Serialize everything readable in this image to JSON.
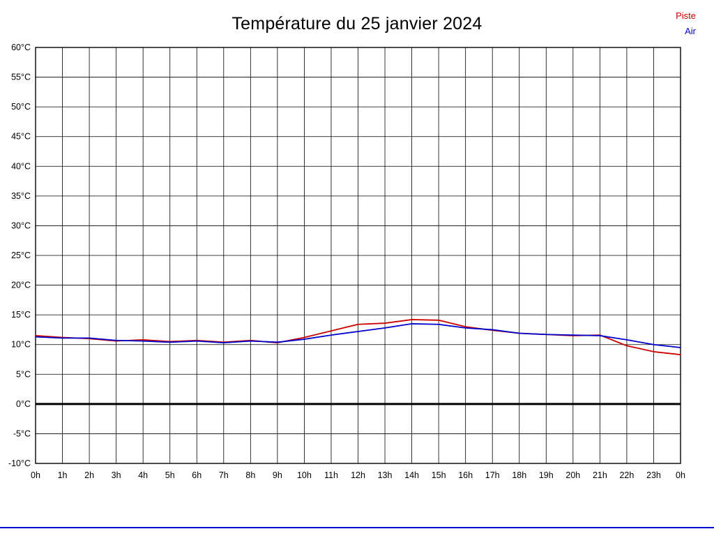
{
  "page": {
    "background": "#ffffff"
  },
  "chart_data": {
    "type": "line",
    "title": "Température du 25 janvier 2024",
    "xlabel": "",
    "ylabel": "",
    "xlim": [
      0,
      24
    ],
    "ylim": [
      -10,
      60
    ],
    "grid": true,
    "legend_position": "top-right",
    "zero_line": {
      "value": 0,
      "color": "#000000",
      "width": 3
    },
    "colors": {
      "grid": "#000000",
      "border": "#000000",
      "tick_text": "#000000",
      "bottom_bar": "#0000cc"
    },
    "x_ticks": [
      {
        "v": 0,
        "label": "0h"
      },
      {
        "v": 1,
        "label": "1h"
      },
      {
        "v": 2,
        "label": "2h"
      },
      {
        "v": 3,
        "label": "3h"
      },
      {
        "v": 4,
        "label": "4h"
      },
      {
        "v": 5,
        "label": "5h"
      },
      {
        "v": 6,
        "label": "6h"
      },
      {
        "v": 7,
        "label": "7h"
      },
      {
        "v": 8,
        "label": "8h"
      },
      {
        "v": 9,
        "label": "9h"
      },
      {
        "v": 10,
        "label": "10h"
      },
      {
        "v": 11,
        "label": "11h"
      },
      {
        "v": 12,
        "label": "12h"
      },
      {
        "v": 13,
        "label": "13h"
      },
      {
        "v": 14,
        "label": "14h"
      },
      {
        "v": 15,
        "label": "15h"
      },
      {
        "v": 16,
        "label": "16h"
      },
      {
        "v": 17,
        "label": "17h"
      },
      {
        "v": 18,
        "label": "18h"
      },
      {
        "v": 19,
        "label": "19h"
      },
      {
        "v": 20,
        "label": "20h"
      },
      {
        "v": 21,
        "label": "21h"
      },
      {
        "v": 22,
        "label": "22h"
      },
      {
        "v": 23,
        "label": "23h"
      },
      {
        "v": 24,
        "label": "0h"
      }
    ],
    "y_ticks": [
      {
        "v": 60,
        "label": "60°C"
      },
      {
        "v": 55,
        "label": "55°C"
      },
      {
        "v": 50,
        "label": "50°C"
      },
      {
        "v": 45,
        "label": "45°C"
      },
      {
        "v": 40,
        "label": "40°C"
      },
      {
        "v": 35,
        "label": "35°C"
      },
      {
        "v": 30,
        "label": "30°C"
      },
      {
        "v": 25,
        "label": "25°C"
      },
      {
        "v": 20,
        "label": "20°C"
      },
      {
        "v": 15,
        "label": "15°C"
      },
      {
        "v": 10,
        "label": "10°C"
      },
      {
        "v": 5,
        "label": "5°C"
      },
      {
        "v": 0,
        "label": "0°C"
      },
      {
        "v": -5,
        "label": "-5°C"
      },
      {
        "v": -10,
        "label": "-10°C"
      }
    ],
    "series": [
      {
        "name": "Piste",
        "color": "#cc0000",
        "x": [
          0,
          1,
          2,
          3,
          4,
          5,
          6,
          7,
          8,
          9,
          10,
          11,
          12,
          13,
          14,
          15,
          16,
          17,
          18,
          19,
          20,
          21,
          22,
          23,
          24
        ],
        "values": [
          11.5,
          11.2,
          11.0,
          10.6,
          10.8,
          10.5,
          10.7,
          10.4,
          10.7,
          10.3,
          11.2,
          12.3,
          13.4,
          13.6,
          14.2,
          14.1,
          13.0,
          12.4,
          11.9,
          11.7,
          11.5,
          11.6,
          9.8,
          8.8,
          8.3
        ]
      },
      {
        "name": "Air",
        "color": "#0000cc",
        "x": [
          0,
          1,
          2,
          3,
          4,
          5,
          6,
          7,
          8,
          9,
          10,
          11,
          12,
          13,
          14,
          15,
          16,
          17,
          18,
          19,
          20,
          21,
          22,
          23,
          24
        ],
        "values": [
          11.3,
          11.1,
          11.1,
          10.7,
          10.6,
          10.4,
          10.6,
          10.3,
          10.6,
          10.4,
          10.9,
          11.6,
          12.2,
          12.8,
          13.5,
          13.4,
          12.8,
          12.5,
          11.9,
          11.7,
          11.6,
          11.5,
          10.8,
          10.0,
          9.5
        ]
      }
    ]
  }
}
